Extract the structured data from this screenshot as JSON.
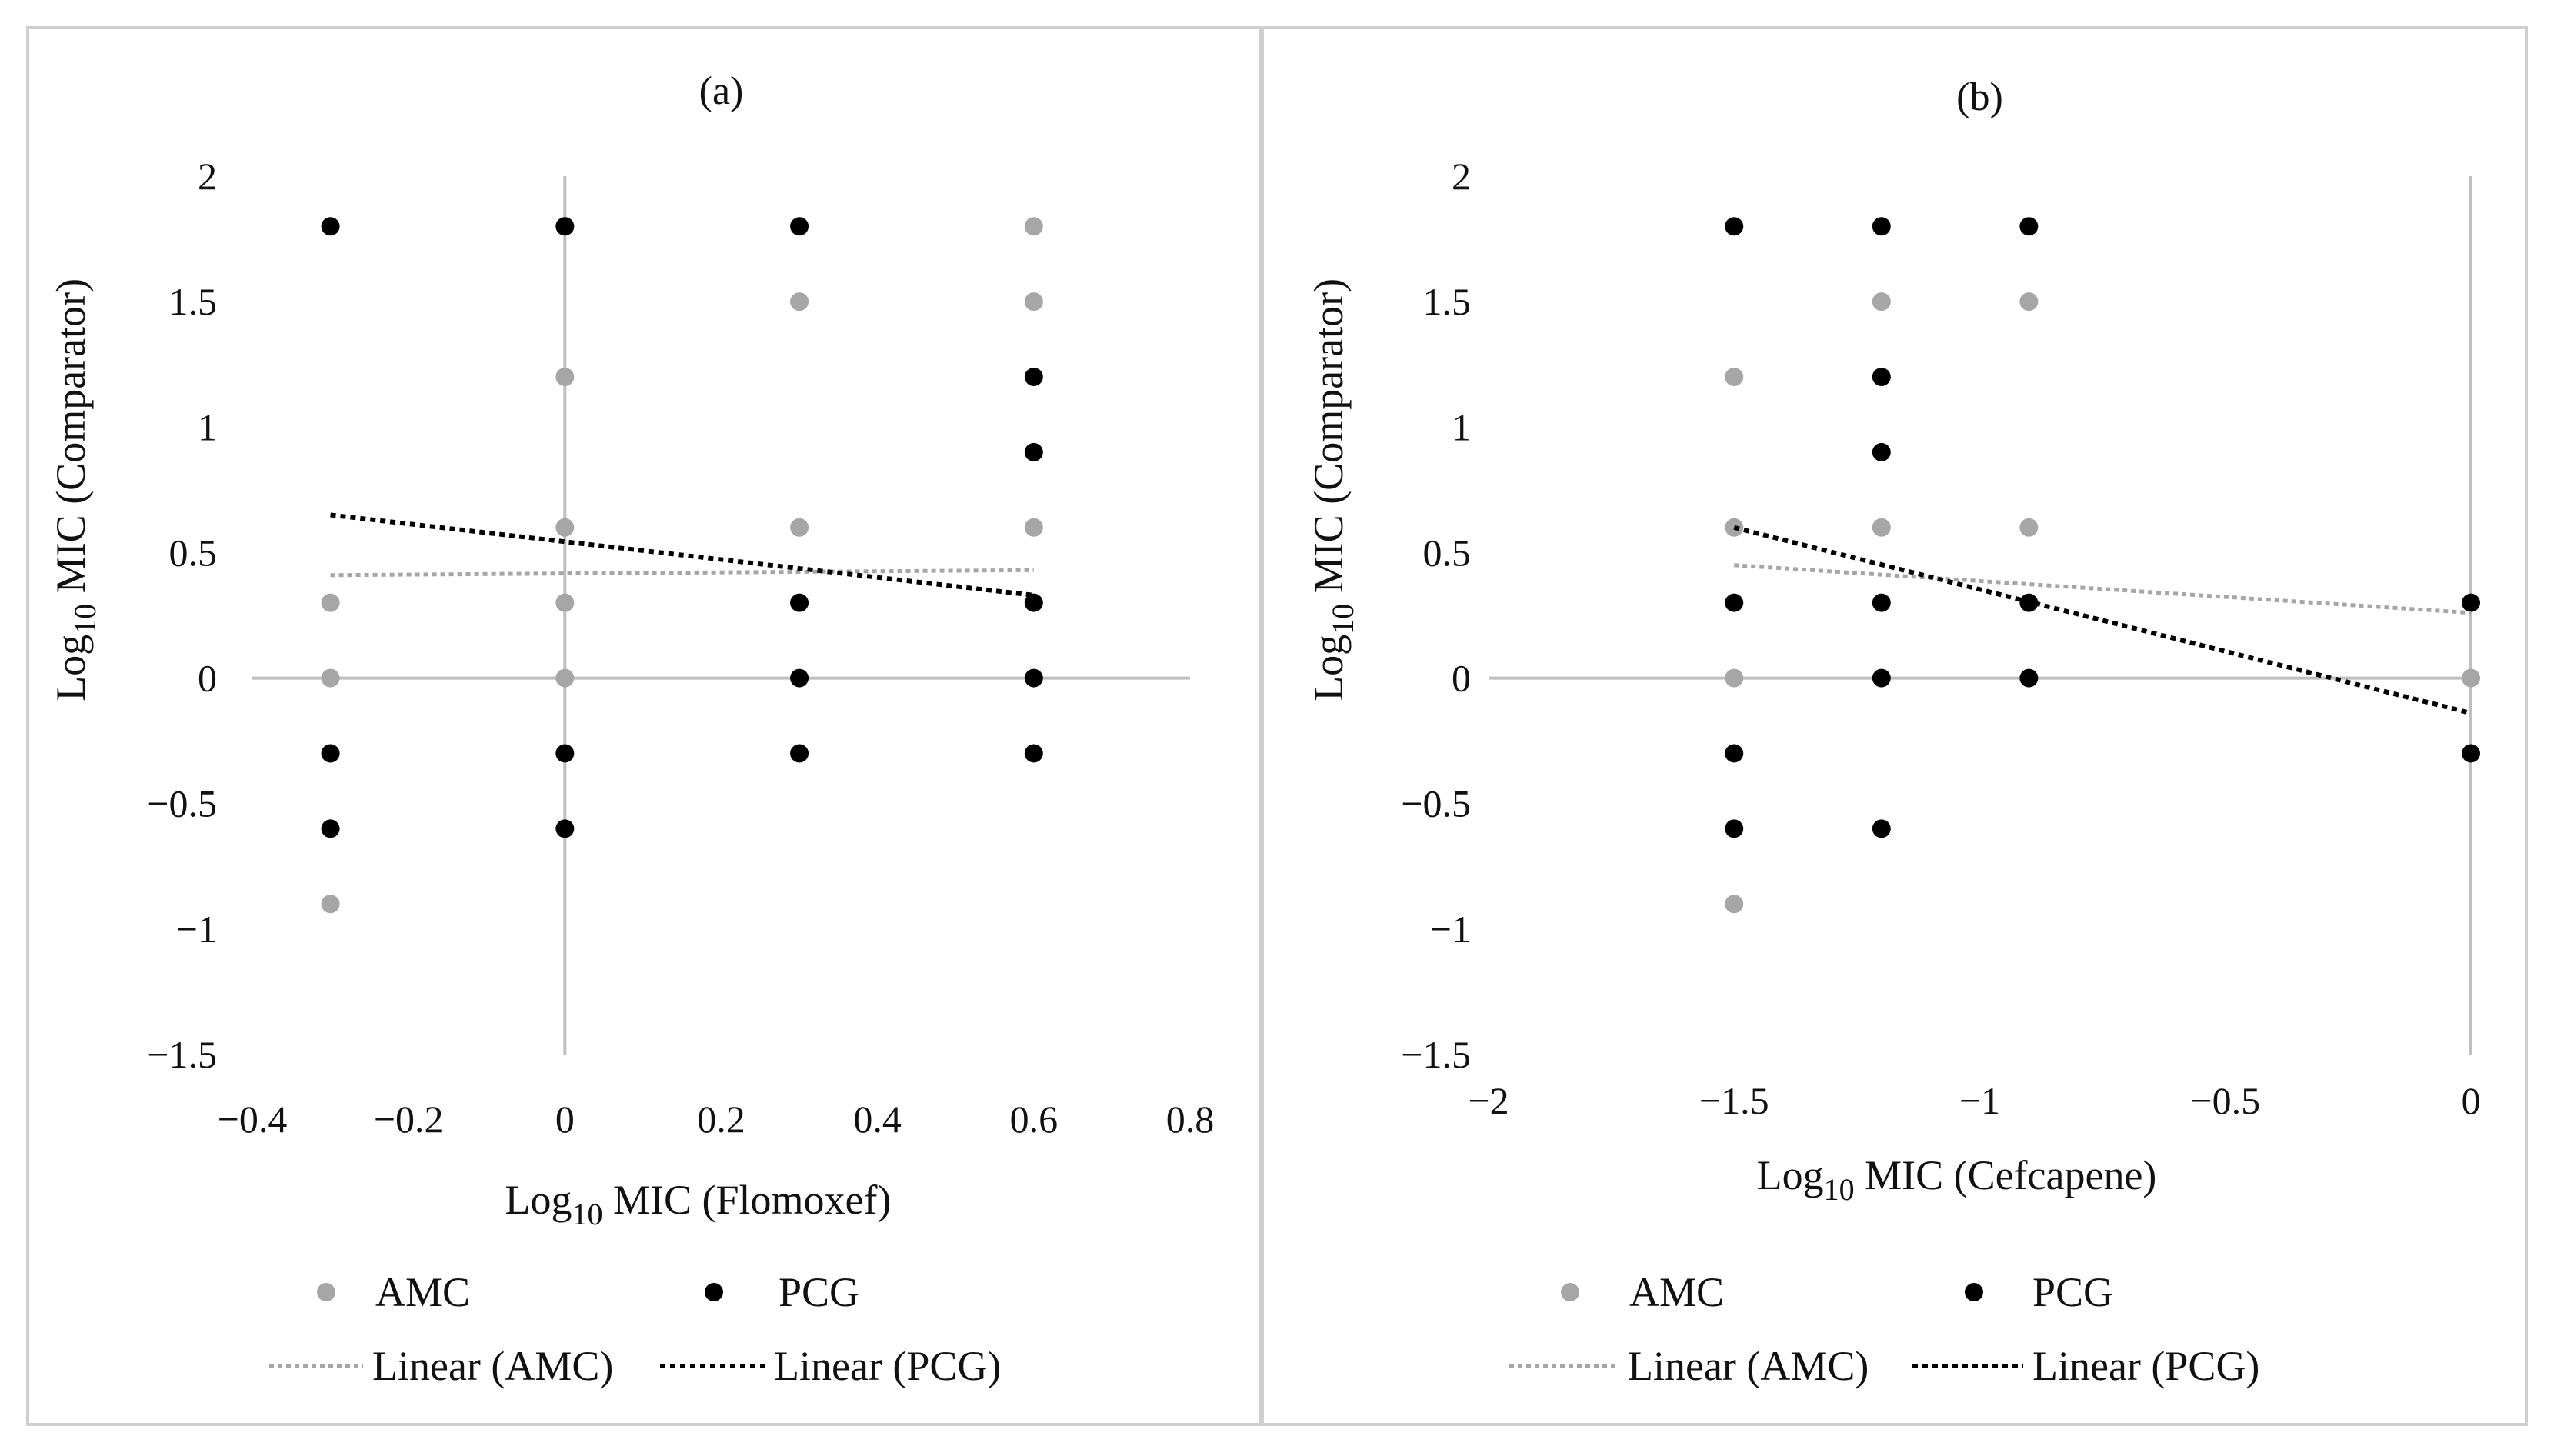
{
  "chart_data": [
    {
      "type": "scatter",
      "title": "(a)",
      "xlabel": {
        "base": "Log",
        "sub": "10",
        "rest": " MIC (Flomoxef)"
      },
      "ylabel": {
        "base": "Log",
        "sub": "10",
        "rest": " MIC (Comparator)"
      },
      "xlim": [
        -0.4,
        0.8
      ],
      "ylim": [
        -1.5,
        2
      ],
      "xticks": [
        -0.4,
        -0.2,
        0,
        0.2,
        0.4,
        0.6,
        0.8
      ],
      "xtick_labels": [
        "−0.4",
        "−0.2",
        "0",
        "0.2",
        "0.4",
        "0.6",
        "0.8"
      ],
      "yticks": [
        2,
        1.5,
        1,
        0.5,
        0,
        -0.5,
        -1,
        -1.5
      ],
      "ytick_labels": [
        "2",
        "1.5",
        "1",
        "0.5",
        "0",
        "−0.5",
        "−1",
        "−1.5"
      ],
      "grid": false,
      "series": [
        {
          "name": "AMC",
          "color": "#a6a6a6",
          "points": [
            [
              -0.3,
              0.3
            ],
            [
              -0.3,
              0
            ],
            [
              -0.3,
              -0.9
            ],
            [
              0,
              1.8
            ],
            [
              0,
              1.2
            ],
            [
              0,
              0.6
            ],
            [
              0,
              0.3
            ],
            [
              0,
              0
            ],
            [
              0.3,
              1.5
            ],
            [
              0.3,
              0.6
            ],
            [
              0.6,
              1.8
            ],
            [
              0.6,
              1.5
            ],
            [
              0.6,
              0.6
            ]
          ]
        },
        {
          "name": "PCG",
          "color": "#000000",
          "points": [
            [
              -0.3,
              1.8
            ],
            [
              -0.3,
              -0.3
            ],
            [
              -0.3,
              -0.6
            ],
            [
              0,
              1.8
            ],
            [
              0,
              -0.3
            ],
            [
              0,
              -0.6
            ],
            [
              0.3,
              1.8
            ],
            [
              0.3,
              0.3
            ],
            [
              0.3,
              0
            ],
            [
              0.3,
              -0.3
            ],
            [
              0.6,
              1.2
            ],
            [
              0.6,
              0.9
            ],
            [
              0.6,
              0.3
            ],
            [
              0.6,
              0
            ],
            [
              0.6,
              -0.3
            ]
          ]
        }
      ],
      "trendlines": [
        {
          "name": "Linear (AMC)",
          "color": "#a6a6a6",
          "from": [
            -0.3,
            0.41
          ],
          "to": [
            0.6,
            0.43
          ]
        },
        {
          "name": "Linear (PCG)",
          "color": "#000000",
          "from": [
            -0.3,
            0.65
          ],
          "to": [
            0.6,
            0.33
          ]
        }
      ],
      "legend": {
        "placement": "bottom",
        "entries": [
          "AMC",
          "PCG",
          "Linear (AMC)",
          "Linear (PCG)"
        ]
      }
    },
    {
      "type": "scatter",
      "title": "(b)",
      "xlabel": {
        "base": "Log",
        "sub": "10",
        "rest": " MIC (Cefcapene)"
      },
      "ylabel": {
        "base": "Log",
        "sub": "10",
        "rest": " MIC (Comparator)"
      },
      "xlim": [
        -2,
        0
      ],
      "ylim": [
        -1.5,
        2
      ],
      "xticks": [
        -2,
        -1.5,
        -1,
        -0.5,
        0
      ],
      "xtick_labels": [
        "−2",
        "−1.5",
        "−1",
        "−0.5",
        "0"
      ],
      "yticks": [
        2,
        1.5,
        1,
        0.5,
        0,
        -0.5,
        -1,
        -1.5
      ],
      "ytick_labels": [
        "2",
        "1.5",
        "1",
        "0.5",
        "0",
        "−0.5",
        "−1",
        "−1.5"
      ],
      "grid": false,
      "series": [
        {
          "name": "AMC",
          "color": "#a6a6a6",
          "points": [
            [
              -1.5,
              1.2
            ],
            [
              -1.5,
              0.6
            ],
            [
              -1.5,
              0
            ],
            [
              -1.5,
              -0.9
            ],
            [
              -1.2,
              1.5
            ],
            [
              -1.2,
              0.6
            ],
            [
              -0.9,
              1.5
            ],
            [
              -0.9,
              0.6
            ],
            [
              0,
              0
            ]
          ]
        },
        {
          "name": "PCG",
          "color": "#000000",
          "points": [
            [
              -1.5,
              1.8
            ],
            [
              -1.5,
              0.3
            ],
            [
              -1.5,
              -0.3
            ],
            [
              -1.5,
              -0.6
            ],
            [
              -1.2,
              1.8
            ],
            [
              -1.2,
              1.2
            ],
            [
              -1.2,
              0.9
            ],
            [
              -1.2,
              0.3
            ],
            [
              -1.2,
              0
            ],
            [
              -1.2,
              -0.6
            ],
            [
              -0.9,
              1.8
            ],
            [
              -0.9,
              0.3
            ],
            [
              -0.9,
              0
            ],
            [
              0,
              0.3
            ],
            [
              0,
              -0.3
            ]
          ]
        }
      ],
      "trendlines": [
        {
          "name": "Linear (AMC)",
          "color": "#a6a6a6",
          "from": [
            -1.5,
            0.45
          ],
          "to": [
            0,
            0.26
          ]
        },
        {
          "name": "Linear (PCG)",
          "color": "#000000",
          "from": [
            -1.5,
            0.6
          ],
          "to": [
            0,
            -0.14
          ]
        }
      ],
      "legend": {
        "placement": "bottom",
        "entries": [
          "AMC",
          "PCG",
          "Linear (AMC)",
          "Linear (PCG)"
        ]
      }
    }
  ]
}
